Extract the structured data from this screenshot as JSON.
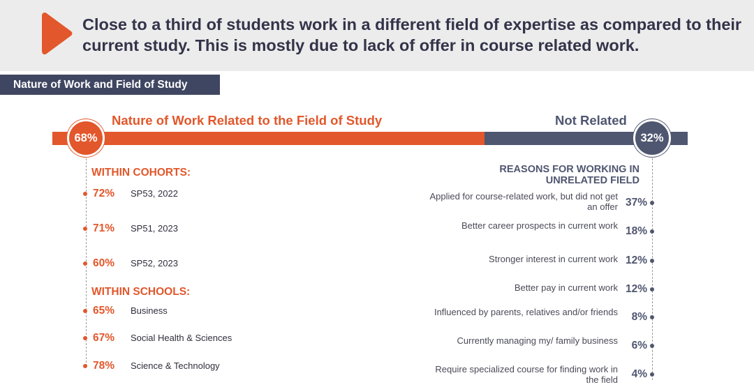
{
  "banner": {
    "headline": "Close to a third of students work in a different field of expertise as compared to their current study. This is mostly due to lack of offer in course related work.",
    "arrow_icon": "play-arrow-icon",
    "accent_color": "#e2572b"
  },
  "section_tag": "Nature of Work and Field of Study",
  "chart_data": {
    "type": "bar",
    "colors": {
      "related": "#e2572b",
      "not_related": "#4f5670"
    },
    "overall": {
      "related_label": "Nature of Work Related to the Field of Study",
      "related_value": 68,
      "related_display": "68%",
      "not_related_label": "Not Related",
      "not_related_value": 32,
      "not_related_display": "32%"
    },
    "cohorts": {
      "title": "WITHIN COHORTS:",
      "items": [
        {
          "label": "SP53, 2022",
          "value": 72,
          "display": "72%"
        },
        {
          "label": "SP51, 2023",
          "value": 71,
          "display": "71%"
        },
        {
          "label": "SP52, 2023",
          "value": 60,
          "display": "60%"
        }
      ]
    },
    "schools": {
      "title": "WITHIN SCHOOLS:",
      "items": [
        {
          "label": "Business",
          "value": 65,
          "display": "65%"
        },
        {
          "label": "Social Health & Sciences",
          "value": 67,
          "display": "67%"
        },
        {
          "label": "Science & Technology",
          "value": 78,
          "display": "78%"
        }
      ]
    },
    "reasons": {
      "title": "REASONS FOR WORKING IN UNRELATED FIELD",
      "items": [
        {
          "label": "Applied for course-related work, but did not get an offer",
          "value": 37,
          "display": "37%"
        },
        {
          "label": "Better career prospects in current work",
          "value": 18,
          "display": "18%"
        },
        {
          "label": "Stronger interest in current work",
          "value": 12,
          "display": "12%"
        },
        {
          "label": "Better pay in current work",
          "value": 12,
          "display": "12%"
        },
        {
          "label": "Influenced by parents, relatives and/or friends",
          "value": 8,
          "display": "8%"
        },
        {
          "label": "Currently managing my/ family business",
          "value": 6,
          "display": "6%"
        },
        {
          "label": "Require specialized course for finding work in the field",
          "value": 4,
          "display": "4%"
        }
      ]
    }
  }
}
